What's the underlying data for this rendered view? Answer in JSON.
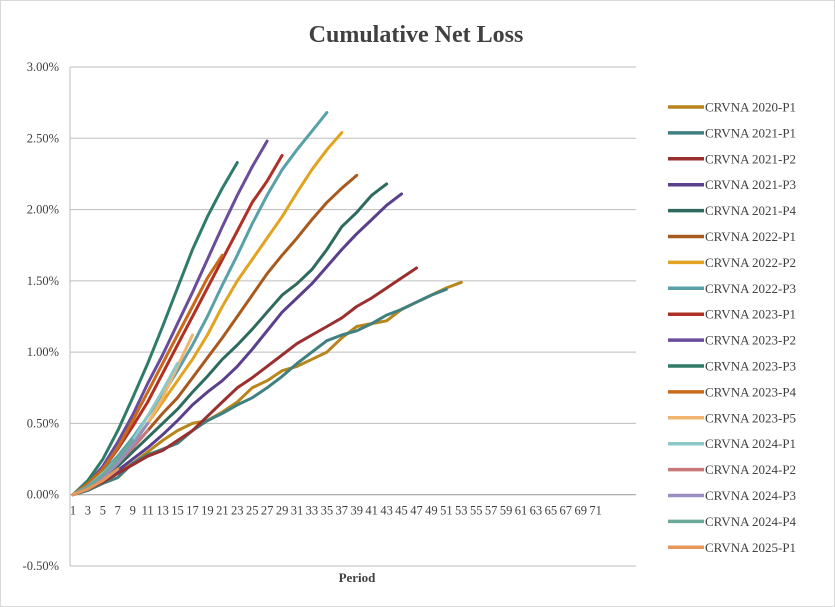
{
  "chart_data": {
    "type": "line",
    "title": "Cumulative Net Loss",
    "xlabel": "Period",
    "ylabel": "",
    "ylim": [
      -0.005,
      0.03
    ],
    "xlim": [
      1,
      76
    ],
    "y_ticks": [
      "-0.50%",
      "0.00%",
      "0.50%",
      "1.00%",
      "1.50%",
      "2.00%",
      "2.50%",
      "3.00%"
    ],
    "x_tick_labels": [
      "1",
      "3",
      "5",
      "7",
      "9",
      "11",
      "13",
      "15",
      "17",
      "19",
      "21",
      "23",
      "25",
      "27",
      "29",
      "31",
      "33",
      "35",
      "37",
      "39",
      "41",
      "43",
      "45",
      "47",
      "49",
      "51",
      "53",
      "55",
      "57",
      "59",
      "61",
      "63",
      "65",
      "67",
      "69",
      "71"
    ],
    "grid": "horizontal",
    "legend_position": "right",
    "series": [
      {
        "name": "CRVNA 2020-P1",
        "color": "#b8861b",
        "x": [
          1,
          3,
          5,
          7,
          9,
          11,
          13,
          15,
          17,
          19,
          21,
          23,
          25,
          27,
          29,
          31,
          33,
          35,
          37,
          39,
          41,
          43,
          45,
          47,
          49,
          51,
          53
        ],
        "values": [
          0,
          0.0003,
          0.0008,
          0.0015,
          0.0022,
          0.003,
          0.0038,
          0.0045,
          0.005,
          0.0052,
          0.0058,
          0.0065,
          0.0075,
          0.008,
          0.0087,
          0.009,
          0.0095,
          0.01,
          0.011,
          0.0118,
          0.012,
          0.0122,
          0.013,
          0.0135,
          0.014,
          0.0145,
          0.0149
        ]
      },
      {
        "name": "CRVNA 2021-P1",
        "color": "#408080",
        "x": [
          1,
          3,
          5,
          7,
          9,
          11,
          13,
          15,
          17,
          19,
          21,
          23,
          25,
          27,
          29,
          31,
          33,
          35,
          37,
          39,
          41,
          43,
          45,
          47,
          49,
          51
        ],
        "values": [
          0,
          0.0003,
          0.0008,
          0.0012,
          0.0022,
          0.0028,
          0.0032,
          0.0036,
          0.0045,
          0.0052,
          0.0057,
          0.0063,
          0.0068,
          0.0075,
          0.0083,
          0.0092,
          0.01,
          0.0108,
          0.0112,
          0.0115,
          0.012,
          0.0126,
          0.013,
          0.0135,
          0.014,
          0.0144
        ]
      },
      {
        "name": "CRVNA 2021-P2",
        "color": "#9b2f2f",
        "x": [
          1,
          3,
          5,
          7,
          9,
          11,
          13,
          15,
          17,
          19,
          21,
          23,
          25,
          27,
          29,
          31,
          33,
          35,
          37,
          39,
          41,
          43,
          45,
          47
        ],
        "values": [
          0,
          0.0004,
          0.0009,
          0.0015,
          0.0021,
          0.0027,
          0.0031,
          0.0038,
          0.0045,
          0.0055,
          0.0065,
          0.0075,
          0.0082,
          0.009,
          0.0098,
          0.0106,
          0.0112,
          0.0118,
          0.0124,
          0.0132,
          0.0138,
          0.0145,
          0.0152,
          0.0159
        ]
      },
      {
        "name": "CRVNA 2021-P3",
        "color": "#5a3f8c",
        "x": [
          1,
          3,
          5,
          7,
          9,
          11,
          13,
          15,
          17,
          19,
          21,
          23,
          25,
          27,
          29,
          31,
          33,
          35,
          37,
          39,
          41,
          43,
          45
        ],
        "values": [
          0,
          0.0005,
          0.001,
          0.0017,
          0.0025,
          0.0033,
          0.0042,
          0.0052,
          0.0063,
          0.0072,
          0.008,
          0.009,
          0.0102,
          0.0115,
          0.0128,
          0.0138,
          0.0148,
          0.016,
          0.0172,
          0.0183,
          0.0193,
          0.0203,
          0.0211
        ]
      },
      {
        "name": "CRVNA 2021-P4",
        "color": "#2e6b5e",
        "x": [
          1,
          3,
          5,
          7,
          9,
          11,
          13,
          15,
          17,
          19,
          21,
          23,
          25,
          27,
          29,
          31,
          33,
          35,
          37,
          39,
          41,
          43
        ],
        "values": [
          0,
          0.0005,
          0.0012,
          0.002,
          0.003,
          0.004,
          0.005,
          0.006,
          0.0072,
          0.0083,
          0.0095,
          0.0105,
          0.0116,
          0.0128,
          0.014,
          0.0148,
          0.0158,
          0.0172,
          0.0188,
          0.0198,
          0.021,
          0.0218
        ]
      },
      {
        "name": "CRVNA 2022-P1",
        "color": "#a85a1e",
        "x": [
          1,
          3,
          5,
          7,
          9,
          11,
          13,
          15,
          17,
          19,
          21,
          23,
          25,
          27,
          29,
          31,
          33,
          35,
          37,
          39
        ],
        "values": [
          0,
          0.0006,
          0.0013,
          0.0022,
          0.0033,
          0.0045,
          0.0057,
          0.0068,
          0.0082,
          0.0096,
          0.011,
          0.0125,
          0.014,
          0.0155,
          0.0168,
          0.018,
          0.0193,
          0.0205,
          0.0215,
          0.0224
        ]
      },
      {
        "name": "CRVNA 2022-P2",
        "color": "#e2a321",
        "x": [
          1,
          3,
          5,
          7,
          9,
          11,
          13,
          15,
          17,
          19,
          21,
          23,
          25,
          27,
          29,
          31,
          33,
          35,
          37
        ],
        "values": [
          0,
          0.0006,
          0.0014,
          0.0024,
          0.0036,
          0.005,
          0.0065,
          0.008,
          0.0095,
          0.0112,
          0.0132,
          0.015,
          0.0165,
          0.018,
          0.0195,
          0.0212,
          0.0228,
          0.0242,
          0.0254
        ]
      },
      {
        "name": "CRVNA 2022-P3",
        "color": "#5aa0a8",
        "x": [
          1,
          3,
          5,
          7,
          9,
          11,
          13,
          15,
          17,
          19,
          21,
          23,
          25,
          27,
          29,
          31,
          33,
          35
        ],
        "values": [
          0,
          0.0007,
          0.0016,
          0.0027,
          0.004,
          0.0055,
          0.007,
          0.0087,
          0.0105,
          0.0125,
          0.0147,
          0.0168,
          0.019,
          0.021,
          0.0228,
          0.0242,
          0.0255,
          0.0268
        ]
      },
      {
        "name": "CRVNA 2023-P1",
        "color": "#b03025",
        "x": [
          1,
          3,
          5,
          7,
          9,
          11,
          13,
          15,
          17,
          19,
          21,
          23,
          25,
          27,
          29
        ],
        "values": [
          0,
          0.0008,
          0.0018,
          0.0032,
          0.0048,
          0.0065,
          0.0085,
          0.0105,
          0.0125,
          0.0145,
          0.0165,
          0.0185,
          0.0205,
          0.022,
          0.0238
        ]
      },
      {
        "name": "CRVNA 2023-P2",
        "color": "#6a4c9c",
        "x": [
          1,
          3,
          5,
          7,
          9,
          11,
          13,
          15,
          17,
          19,
          21,
          23,
          25,
          27
        ],
        "values": [
          0,
          0.0008,
          0.002,
          0.0037,
          0.0056,
          0.0078,
          0.0098,
          0.012,
          0.0142,
          0.0165,
          0.0188,
          0.021,
          0.023,
          0.0248
        ]
      },
      {
        "name": "CRVNA 2023-P3",
        "color": "#2f7b6a",
        "x": [
          1,
          3,
          5,
          7,
          9,
          11,
          13,
          15,
          17,
          19,
          21,
          23
        ],
        "values": [
          0,
          0.001,
          0.0025,
          0.0045,
          0.0068,
          0.0092,
          0.0118,
          0.0145,
          0.0172,
          0.0195,
          0.0215,
          0.0233
        ]
      },
      {
        "name": "CRVNA 2023-P4",
        "color": "#c86a1a",
        "x": [
          1,
          3,
          5,
          7,
          9,
          11,
          13,
          15,
          17,
          19,
          21
        ],
        "values": [
          0,
          0.0008,
          0.0018,
          0.0033,
          0.0052,
          0.0072,
          0.0092,
          0.0112,
          0.0132,
          0.0152,
          0.0168
        ]
      },
      {
        "name": "CRVNA 2023-P5",
        "color": "#f2b36e",
        "x": [
          1,
          3,
          5,
          7,
          9,
          11,
          13,
          15,
          17
        ],
        "values": [
          0,
          0.0005,
          0.0012,
          0.0022,
          0.0035,
          0.005,
          0.0068,
          0.009,
          0.0112
        ]
      },
      {
        "name": "CRVNA 2024-P1",
        "color": "#8cc8c8",
        "x": [
          1,
          3,
          5,
          7,
          9,
          11,
          13,
          15
        ],
        "values": [
          0,
          0.0006,
          0.0015,
          0.0025,
          0.0038,
          0.0055,
          0.0073,
          0.0092
        ]
      },
      {
        "name": "CRVNA 2024-P2",
        "color": "#c87878",
        "x": [
          1,
          3,
          5,
          7,
          9,
          11
        ],
        "values": [
          0,
          0.0005,
          0.0013,
          0.0022,
          0.0033,
          0.0045
        ]
      },
      {
        "name": "CRVNA 2024-P3",
        "color": "#9a8ec0",
        "x": [
          1,
          3,
          5,
          7,
          9,
          11
        ],
        "values": [
          0,
          0.0005,
          0.0012,
          0.0022,
          0.0035,
          0.005
        ]
      },
      {
        "name": "CRVNA 2024-P4",
        "color": "#6aa89a",
        "x": [
          1,
          3,
          5,
          7,
          9
        ],
        "values": [
          0,
          0.0006,
          0.0014,
          0.0025,
          0.0038
        ]
      },
      {
        "name": "CRVNA 2025-P1",
        "color": "#e8955a",
        "x": [
          1,
          3,
          5,
          7
        ],
        "values": [
          0,
          0.0004,
          0.001,
          0.0018
        ]
      }
    ]
  }
}
